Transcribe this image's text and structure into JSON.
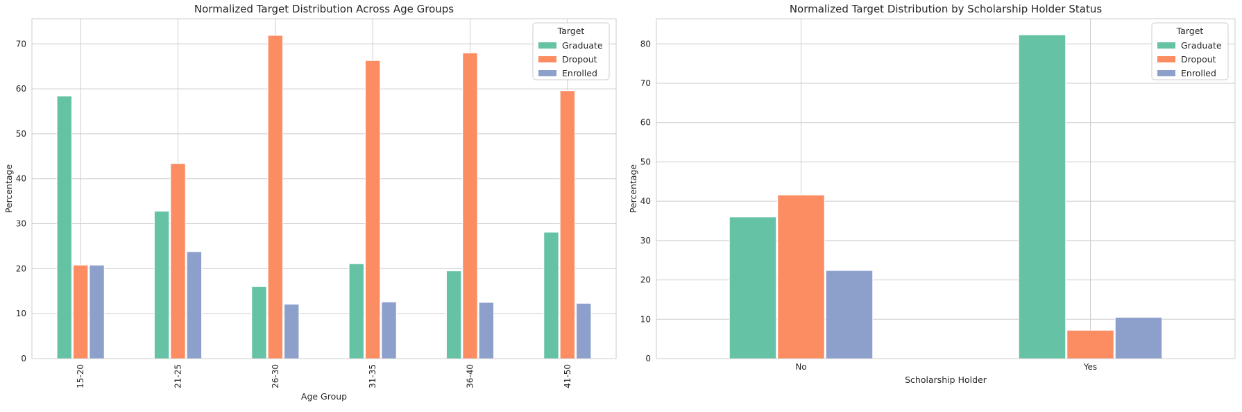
{
  "chart_data": [
    {
      "type": "bar",
      "title": "Normalized Target Distribution Across Age Groups",
      "xlabel": "Age Group",
      "ylabel": "Percentage",
      "categories": [
        "15-20",
        "21-25",
        "26-30",
        "31-35",
        "36-40",
        "41-50"
      ],
      "series": [
        {
          "name": "Graduate",
          "color": "#66c2a5",
          "values": [
            58.4,
            32.8,
            16.0,
            21.1,
            19.5,
            28.1
          ]
        },
        {
          "name": "Dropout",
          "color": "#fc8d62",
          "values": [
            20.8,
            43.4,
            71.9,
            66.3,
            68.0,
            59.6
          ]
        },
        {
          "name": "Enrolled",
          "color": "#8da0cb",
          "values": [
            20.8,
            23.8,
            12.1,
            12.6,
            12.5,
            12.3
          ]
        }
      ],
      "ylim": [
        0,
        75.6
      ],
      "yticks": [
        0,
        10,
        20,
        30,
        40,
        50,
        60,
        70
      ],
      "x_tick_rotation": "vertical",
      "legend": {
        "title": "Target",
        "placement": "top-right"
      },
      "grid": true
    },
    {
      "type": "bar",
      "title": "Normalized Target Distribution by Scholarship Holder Status",
      "xlabel": "Scholarship Holder",
      "ylabel": "Percentage",
      "categories": [
        "No",
        "Yes"
      ],
      "series": [
        {
          "name": "Graduate",
          "color": "#66c2a5",
          "values": [
            36.0,
            82.3
          ]
        },
        {
          "name": "Dropout",
          "color": "#fc8d62",
          "values": [
            41.6,
            7.2
          ]
        },
        {
          "name": "Enrolled",
          "color": "#8da0cb",
          "values": [
            22.4,
            10.5
          ]
        }
      ],
      "ylim": [
        0,
        86.4
      ],
      "yticks": [
        0,
        10,
        20,
        30,
        40,
        50,
        60,
        70,
        80
      ],
      "x_tick_rotation": "horizontal",
      "legend": {
        "title": "Target",
        "placement": "top-right"
      },
      "grid": true
    }
  ]
}
